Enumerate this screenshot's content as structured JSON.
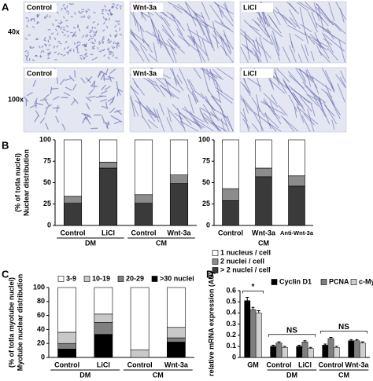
{
  "figure": {
    "panel_A": {
      "label": "A",
      "columns": [
        "Control",
        "Wnt-3a",
        "LiCl"
      ],
      "rows": [
        "40x",
        "100x"
      ]
    }
  },
  "chart_data": [
    {
      "panel": "B",
      "type": "stacked_bar",
      "y_label": [
        "Nuclear distribution",
        "(% of totla nuclei)"
      ],
      "groups": [
        {
          "name": "DM",
          "categories": [
            "Control",
            "LiCl"
          ]
        },
        {
          "name": "CM",
          "categories": [
            "Control",
            "Wnt-3a"
          ]
        }
      ],
      "series": [
        {
          "color": "#3a3a3a",
          "values": [
            26,
            67,
            26,
            49
          ]
        },
        {
          "color": "#8c8c8c",
          "values": [
            8,
            7,
            10,
            10
          ]
        },
        {
          "color": "#ffffff",
          "values": [
            66,
            26,
            64,
            41
          ]
        }
      ],
      "ylim": [
        0,
        100
      ],
      "yticks": [
        0,
        25,
        50,
        75,
        100
      ]
    },
    {
      "type": "stacked_bar",
      "groups": [
        {
          "categories": [
            "Control"
          ]
        },
        {
          "name": "CM",
          "categories": [
            "Wnt-3a"
          ]
        },
        {
          "categories": [
            "Anti-Wnt-3a"
          ]
        }
      ],
      "series": [
        {
          "name": "> 2 nuclei / cell",
          "color": "#3a3a3a",
          "values": [
            29,
            57,
            46
          ]
        },
        {
          "name": "2 nuclei / cell",
          "color": "#8c8c8c",
          "values": [
            14,
            10,
            12
          ]
        },
        {
          "name": "1 nucleus / cell",
          "color": "#ffffff",
          "values": [
            57,
            33,
            42
          ]
        }
      ],
      "ylim": [
        0,
        100
      ],
      "yticks": [
        0,
        25,
        50,
        75,
        100
      ],
      "legend": "below"
    },
    {
      "panel": "C",
      "type": "stacked_bar",
      "y_label": [
        "Myotube nuclear distribution",
        "(% of totla myotube nuclei)"
      ],
      "groups": [
        {
          "name": "DM",
          "categories": [
            "Control",
            "LiCl"
          ]
        },
        {
          "name": "CM",
          "categories": [
            "Control",
            "Wnt-3a"
          ]
        }
      ],
      "series": [
        {
          "name": ">30 nuclei",
          "color": "#000000",
          "values": [
            12,
            33,
            0,
            22
          ]
        },
        {
          "name": "20-29",
          "color": "#7f7f7f",
          "values": [
            8,
            17,
            0,
            6
          ]
        },
        {
          "name": "10-19",
          "color": "#c8c8c8",
          "values": [
            16,
            12,
            11,
            15
          ]
        },
        {
          "name": "3-9",
          "color": "#ffffff",
          "values": [
            64,
            38,
            89,
            57
          ]
        }
      ],
      "ylim": [
        0,
        100
      ],
      "yticks": [
        0,
        20,
        40,
        60,
        80,
        100
      ],
      "legend": "top"
    },
    {
      "panel": "D",
      "type": "grouped_bar",
      "y_label": [
        "relative mRNA expression (AU)"
      ],
      "groups": [
        {
          "categories": [
            "GM"
          ]
        },
        {
          "name": "DM",
          "categories": [
            "Control",
            "LiCl"
          ]
        },
        {
          "name": "CM",
          "categories": [
            "Control",
            "Wnt-3a"
          ]
        }
      ],
      "series": [
        {
          "name": "Cyclin D1",
          "color": "#000000",
          "values": [
            0.51,
            0.1,
            0.1,
            0.11,
            0.15
          ],
          "errors": [
            0.03,
            0.01,
            0.01,
            0.01,
            0.01
          ]
        },
        {
          "name": "PCNA",
          "color": "#7f7f7f",
          "values": [
            0.43,
            0.13,
            0.14,
            0.17,
            0.15
          ],
          "errors": [
            0.02,
            0.01,
            0.01,
            0.01,
            0.01
          ]
        },
        {
          "name": "c-Myc",
          "color": "#d0d0d0",
          "values": [
            0.4,
            0.09,
            0.08,
            0.09,
            0.13
          ],
          "errors": [
            0.02,
            0.01,
            0.01,
            0.01,
            0.01
          ]
        }
      ],
      "ylim": [
        0,
        0.6
      ],
      "yticks": [
        0,
        0.1,
        0.2,
        0.3,
        0.4,
        0.5,
        0.6
      ],
      "legend": "top",
      "annotations": [
        "*",
        "NS",
        "NS"
      ]
    }
  ]
}
